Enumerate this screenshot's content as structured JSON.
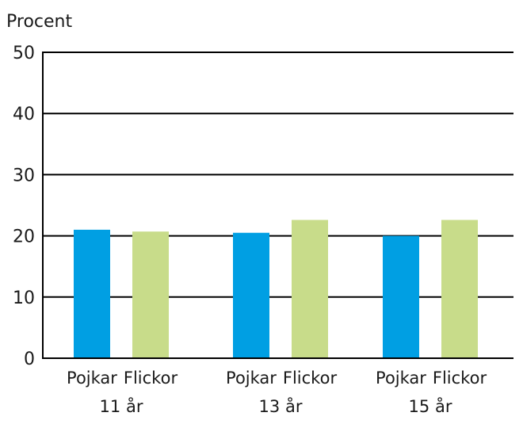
{
  "chart_data": {
    "type": "bar",
    "title": "",
    "ylabel": "Procent",
    "xlabel": "",
    "ylim": [
      0,
      50
    ],
    "yticks": [
      0,
      10,
      20,
      30,
      40,
      50
    ],
    "grid": true,
    "groups": [
      {
        "label": "11 år",
        "bars": [
          {
            "label": "Pojkar",
            "value": 21,
            "color": "#009fe3"
          },
          {
            "label": "Flickor",
            "value": 20.7,
            "color": "#c8dc8a"
          }
        ]
      },
      {
        "label": "13 år",
        "bars": [
          {
            "label": "Pojkar",
            "value": 20.5,
            "color": "#009fe3"
          },
          {
            "label": "Flickor",
            "value": 22.6,
            "color": "#c8dc8a"
          }
        ]
      },
      {
        "label": "15 år",
        "bars": [
          {
            "label": "Pojkar",
            "value": 20,
            "color": "#009fe3"
          },
          {
            "label": "Flickor",
            "value": 22.6,
            "color": "#c8dc8a"
          }
        ]
      }
    ]
  }
}
